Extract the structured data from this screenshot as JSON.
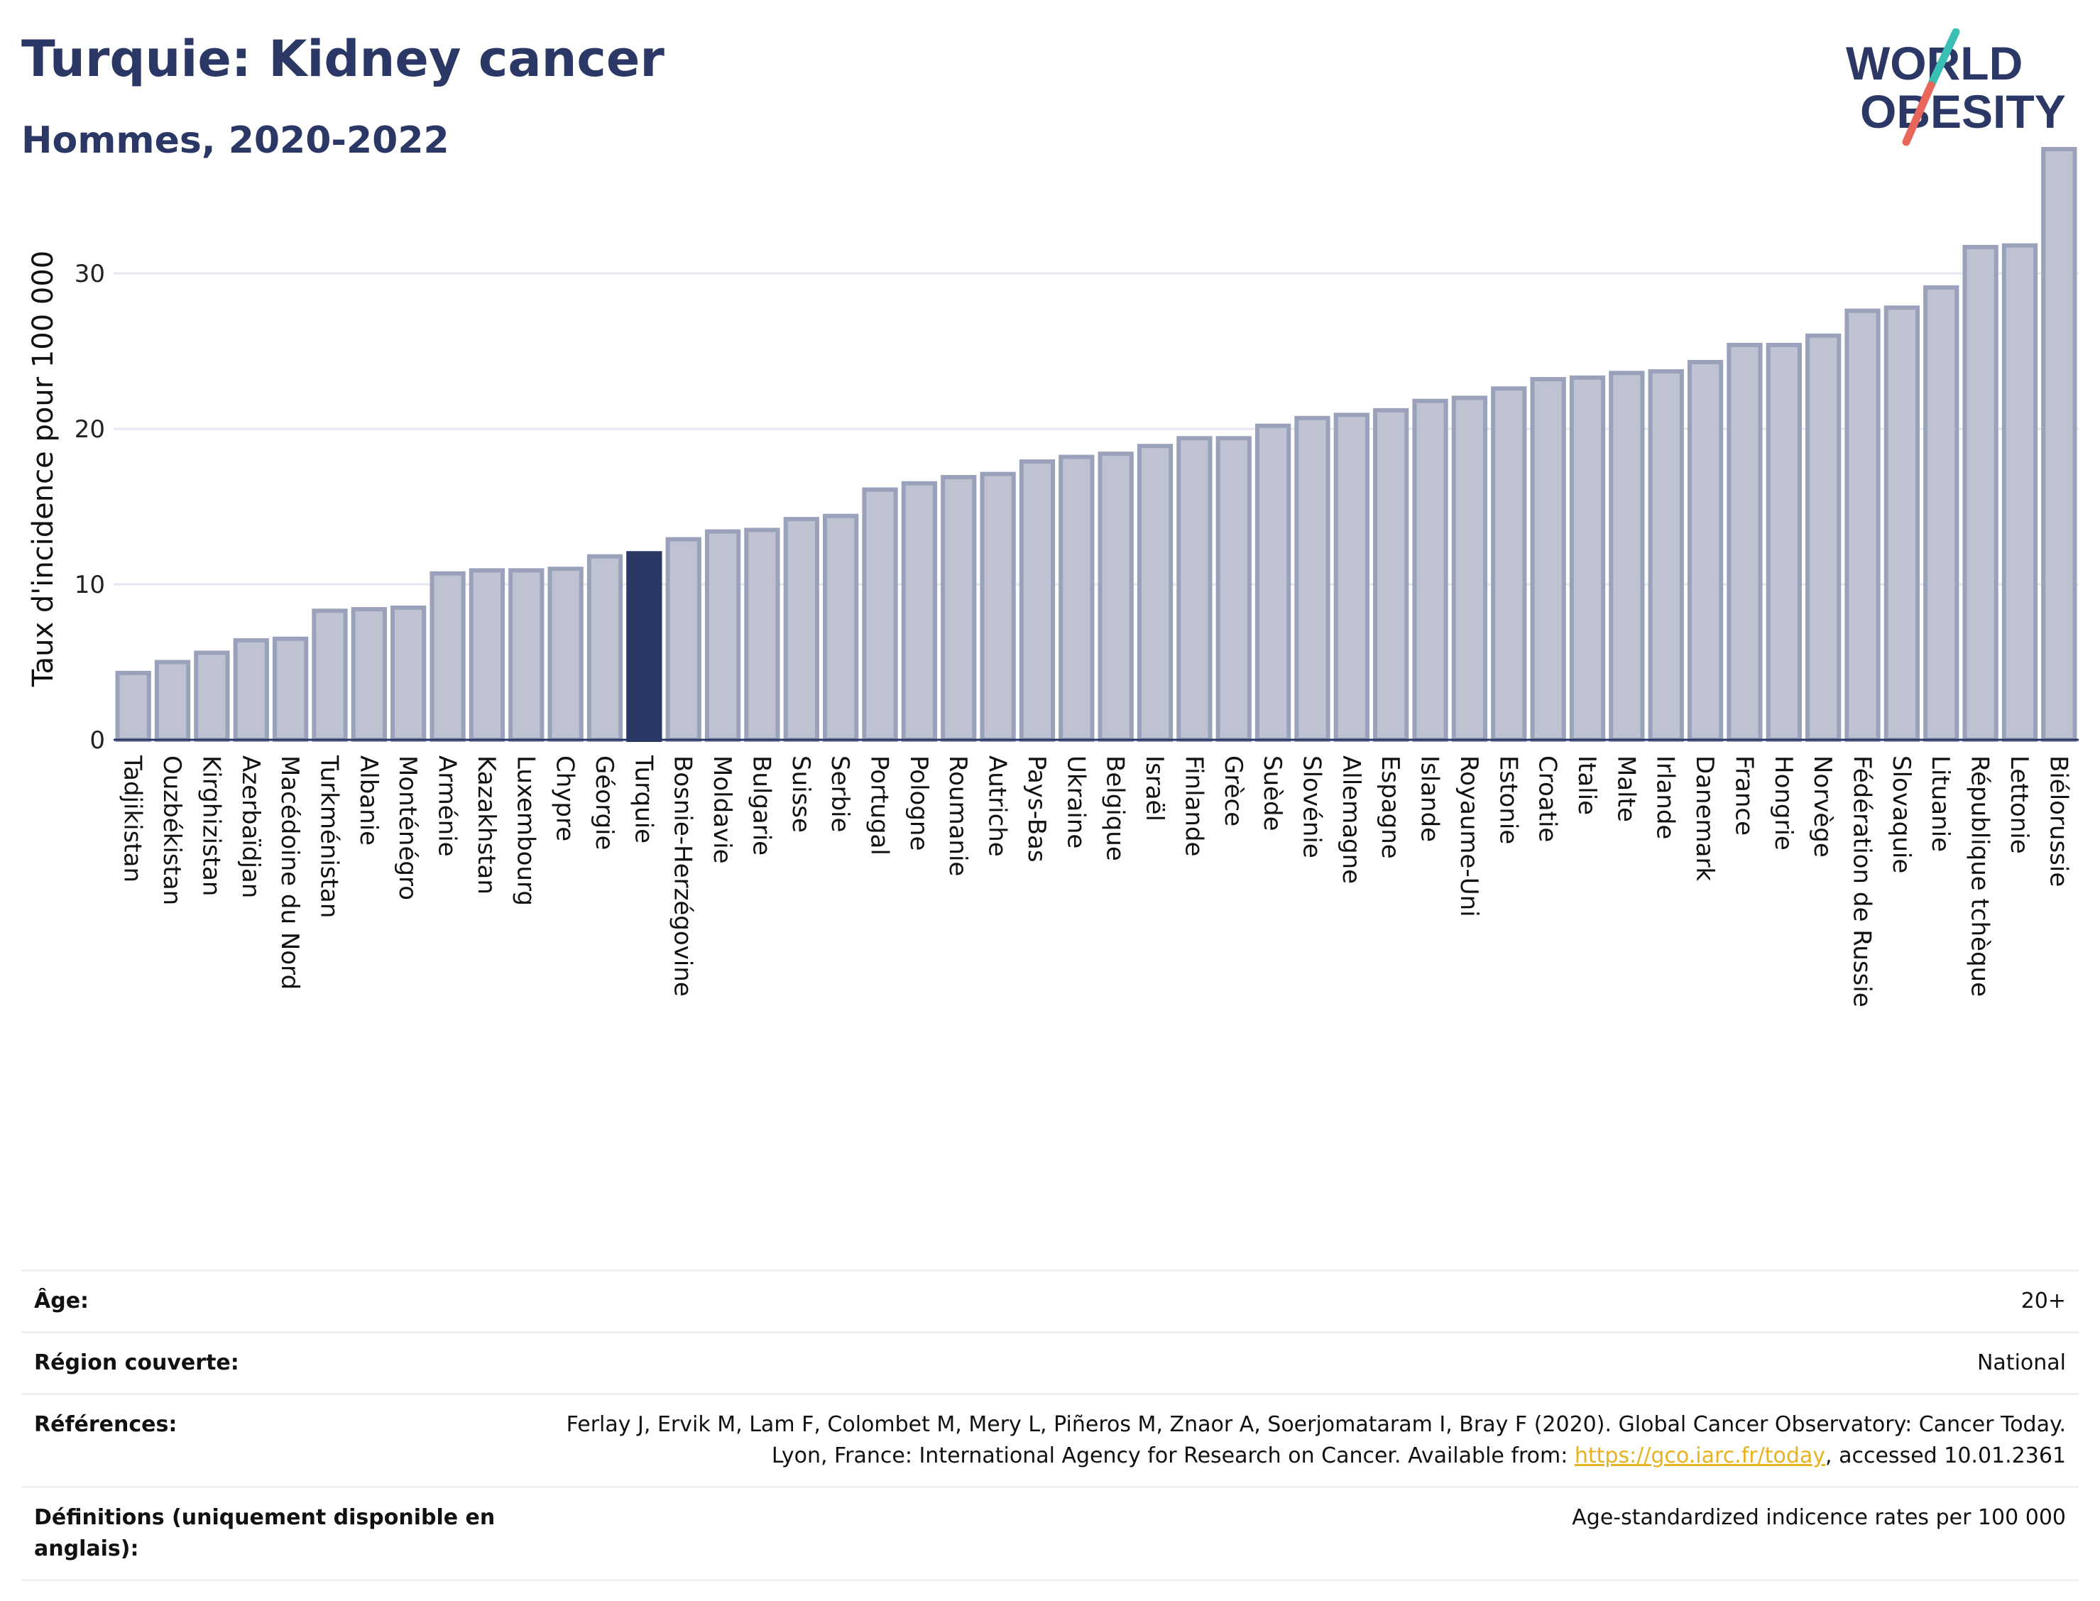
{
  "header": {
    "title": "Turquie: Kidney cancer",
    "subtitle": "Hommes, 2020-2022"
  },
  "logo": {
    "line1": "WORLD",
    "line2": "OBESITY"
  },
  "colors": {
    "bar": "#bfc3d1",
    "bar_stroke": "#9aa1bb",
    "highlight": "#2b3765",
    "title": "#2b3765",
    "link": "#e8b220"
  },
  "chart_data": {
    "type": "bar",
    "title": "Turquie: Kidney cancer",
    "subtitle": "Hommes, 2020-2022",
    "xlabel": "",
    "ylabel": "Taux d'incidence pour 100 000",
    "ylim": [
      0,
      38
    ],
    "yticks": [
      0,
      10,
      20,
      30
    ],
    "grid": true,
    "highlight": "Turquie",
    "categories": [
      "Tadjikistan",
      "Ouzbékistan",
      "Kirghizistan",
      "Azerbaïdjan",
      "Macédoine du Nord",
      "Turkménistan",
      "Albanie",
      "Monténégro",
      "Arménie",
      "Kazakhstan",
      "Luxembourg",
      "Chypre",
      "Géorgie",
      "Turquie",
      "Bosnie-Herzégovine",
      "Moldavie",
      "Bulgarie",
      "Suisse",
      "Serbie",
      "Portugal",
      "Pologne",
      "Roumanie",
      "Autriche",
      "Pays-Bas",
      "Ukraine",
      "Belgique",
      "Israël",
      "Finlande",
      "Grèce",
      "Suède",
      "Slovénie",
      "Allemagne",
      "Espagne",
      "Islande",
      "Royaume-Uni",
      "Estonie",
      "Croatie",
      "Italie",
      "Malte",
      "Irlande",
      "Danemark",
      "France",
      "Hongrie",
      "Norvège",
      "Fédération de Russie",
      "Slovaquie",
      "Lituanie",
      "République tchèque",
      "Lettonie",
      "Biélorussie"
    ],
    "values": [
      4.3,
      5.0,
      5.6,
      6.4,
      6.5,
      8.3,
      8.4,
      8.5,
      10.7,
      10.9,
      10.9,
      11.0,
      11.8,
      12.0,
      12.9,
      13.4,
      13.5,
      14.2,
      14.4,
      16.1,
      16.5,
      16.9,
      17.1,
      17.9,
      18.2,
      18.4,
      18.9,
      19.4,
      19.4,
      20.2,
      20.7,
      20.9,
      21.2,
      21.8,
      22.0,
      22.6,
      23.2,
      23.3,
      23.6,
      23.7,
      24.3,
      25.4,
      25.4,
      26.0,
      27.6,
      27.8,
      29.1,
      31.7,
      31.8,
      38.0
    ]
  },
  "info": [
    {
      "key": "Âge:",
      "value": "20+"
    },
    {
      "key": "Région couverte:",
      "value": "National"
    },
    {
      "key": "Références:",
      "value_pre": "Ferlay J, Ervik M, Lam F, Colombet M, Mery L, Piñeros M, Znaor A, Soerjomataram I, Bray F (2020). Global Cancer Observatory: Cancer Today. Lyon, France: International Agency for Research on Cancer. Available from: ",
      "link": "https://gco.iarc.fr/today",
      "value_post": ", accessed 10.01.2361"
    },
    {
      "key": "Définitions (uniquement disponible en anglais):",
      "value": "Age-standardized indicence rates per 100 000"
    }
  ]
}
